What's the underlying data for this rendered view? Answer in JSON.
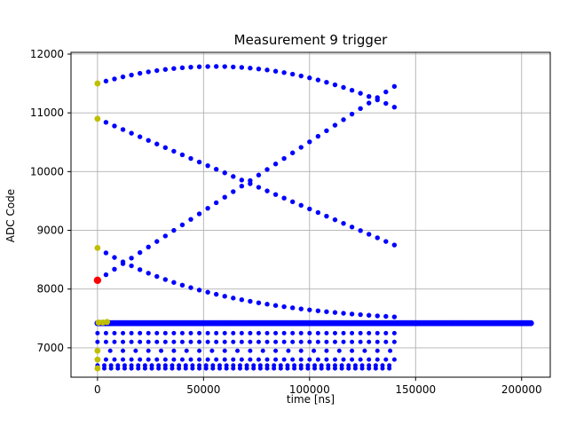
{
  "chart_data": {
    "type": "scatter",
    "title": "Measurement 9 trigger",
    "xlabel": "time [ns]",
    "ylabel": "ADC Code",
    "xlim": [
      -12500,
      213500
    ],
    "ylim": [
      6500,
      12030
    ],
    "xticks": [
      0,
      50000,
      100000,
      150000,
      200000
    ],
    "yticks": [
      7000,
      8000,
      9000,
      10000,
      11000,
      12000
    ],
    "grid": true,
    "legend": "none",
    "colors": {
      "points": "#0000ff",
      "start_markers": "#bfbf00",
      "trigger_marker": "#ff0000",
      "grid": "#b0b0b0",
      "axes": "#000000",
      "background": "#ffffff"
    },
    "series": [
      {
        "name": "top-arc",
        "points": [
          [
            0,
            11500
          ],
          [
            4000,
            11541
          ],
          [
            8000,
            11578
          ],
          [
            12000,
            11613
          ],
          [
            16000,
            11644
          ],
          [
            20000,
            11673
          ],
          [
            24000,
            11698
          ],
          [
            28000,
            11720
          ],
          [
            32000,
            11739
          ],
          [
            36000,
            11755
          ],
          [
            40000,
            11768
          ],
          [
            44000,
            11778
          ],
          [
            48000,
            11785
          ],
          [
            52000,
            11789
          ],
          [
            56000,
            11790
          ],
          [
            60000,
            11788
          ],
          [
            64000,
            11782
          ],
          [
            68000,
            11774
          ],
          [
            72000,
            11762
          ],
          [
            76000,
            11748
          ],
          [
            80000,
            11730
          ],
          [
            84000,
            11709
          ],
          [
            88000,
            11686
          ],
          [
            92000,
            11659
          ],
          [
            96000,
            11629
          ],
          [
            100000,
            11596
          ],
          [
            104000,
            11560
          ],
          [
            108000,
            11521
          ],
          [
            112000,
            11478
          ],
          [
            116000,
            11433
          ],
          [
            120000,
            11385
          ],
          [
            124000,
            11333
          ],
          [
            128000,
            11279
          ],
          [
            132000,
            11221
          ],
          [
            136000,
            11161
          ],
          [
            140000,
            11097
          ]
        ]
      },
      {
        "name": "descending",
        "points": [
          [
            0,
            10900
          ],
          [
            4000,
            10839
          ],
          [
            8000,
            10777
          ],
          [
            12000,
            10716
          ],
          [
            16000,
            10654
          ],
          [
            20000,
            10593
          ],
          [
            24000,
            10531
          ],
          [
            28000,
            10470
          ],
          [
            32000,
            10409
          ],
          [
            36000,
            10347
          ],
          [
            40000,
            10286
          ],
          [
            44000,
            10224
          ],
          [
            48000,
            10163
          ],
          [
            52000,
            10101
          ],
          [
            56000,
            10040
          ],
          [
            60000,
            9979
          ],
          [
            64000,
            9917
          ],
          [
            68000,
            9856
          ],
          [
            72000,
            9794
          ],
          [
            76000,
            9733
          ],
          [
            80000,
            9671
          ],
          [
            84000,
            9610
          ],
          [
            88000,
            9549
          ],
          [
            92000,
            9487
          ],
          [
            96000,
            9426
          ],
          [
            100000,
            9364
          ],
          [
            104000,
            9303
          ],
          [
            108000,
            9241
          ],
          [
            112000,
            9180
          ],
          [
            116000,
            9119
          ],
          [
            120000,
            9057
          ],
          [
            124000,
            8996
          ],
          [
            128000,
            8934
          ],
          [
            132000,
            8873
          ],
          [
            136000,
            8811
          ],
          [
            140000,
            8750
          ]
        ]
      },
      {
        "name": "ascending",
        "points": [
          [
            0,
            8150
          ],
          [
            4000,
            8244
          ],
          [
            8000,
            8339
          ],
          [
            12000,
            8433
          ],
          [
            16000,
            8527
          ],
          [
            20000,
            8621
          ],
          [
            24000,
            8716
          ],
          [
            28000,
            8810
          ],
          [
            32000,
            8904
          ],
          [
            36000,
            8999
          ],
          [
            40000,
            9093
          ],
          [
            44000,
            9187
          ],
          [
            48000,
            9281
          ],
          [
            52000,
            9376
          ],
          [
            56000,
            9470
          ],
          [
            60000,
            9564
          ],
          [
            64000,
            9659
          ],
          [
            68000,
            9753
          ],
          [
            72000,
            9847
          ],
          [
            76000,
            9941
          ],
          [
            80000,
            10036
          ],
          [
            84000,
            10130
          ],
          [
            88000,
            10224
          ],
          [
            92000,
            10319
          ],
          [
            96000,
            10413
          ],
          [
            100000,
            10507
          ],
          [
            104000,
            10601
          ],
          [
            108000,
            10696
          ],
          [
            112000,
            10790
          ],
          [
            116000,
            10884
          ],
          [
            120000,
            10979
          ],
          [
            124000,
            11073
          ],
          [
            128000,
            11167
          ],
          [
            132000,
            11261
          ],
          [
            136000,
            11356
          ],
          [
            140000,
            11450
          ]
        ]
      },
      {
        "name": "decay-to-baseline",
        "points": [
          [
            0,
            8700
          ],
          [
            4000,
            8616
          ],
          [
            8000,
            8538
          ],
          [
            12000,
            8464
          ],
          [
            16000,
            8396
          ],
          [
            20000,
            8331
          ],
          [
            24000,
            8271
          ],
          [
            28000,
            8215
          ],
          [
            32000,
            8163
          ],
          [
            36000,
            8113
          ],
          [
            40000,
            8067
          ],
          [
            44000,
            8024
          ],
          [
            48000,
            7984
          ],
          [
            52000,
            7947
          ],
          [
            56000,
            7911
          ],
          [
            60000,
            7878
          ],
          [
            64000,
            7847
          ],
          [
            68000,
            7819
          ],
          [
            72000,
            7792
          ],
          [
            76000,
            7766
          ],
          [
            80000,
            7743
          ],
          [
            84000,
            7721
          ],
          [
            88000,
            7700
          ],
          [
            92000,
            7681
          ],
          [
            96000,
            7662
          ],
          [
            100000,
            7646
          ],
          [
            104000,
            7630
          ],
          [
            108000,
            7615
          ],
          [
            112000,
            7601
          ],
          [
            116000,
            7588
          ],
          [
            120000,
            7576
          ],
          [
            124000,
            7565
          ],
          [
            128000,
            7554
          ],
          [
            132000,
            7544
          ],
          [
            136000,
            7535
          ],
          [
            140000,
            7526
          ]
        ]
      }
    ],
    "rows": [
      {
        "name": "baseline-band",
        "y": 7420,
        "x_start": 0,
        "x_end": 205000,
        "step": 700,
        "r": 3.4
      },
      {
        "name": "row-7250",
        "y": 7250,
        "x_start": 0,
        "x_end": 140000,
        "step": 4000,
        "r": 2.5
      },
      {
        "name": "row-7100",
        "y": 7100,
        "x_start": 0,
        "x_end": 140000,
        "step": 4000,
        "r": 2.5
      },
      {
        "name": "row-6950",
        "y": 6950,
        "x_start": 0,
        "x_end": 140000,
        "step": 6000,
        "r": 2.5
      },
      {
        "name": "row-6800",
        "y": 6800,
        "x_start": 0,
        "x_end": 140000,
        "step": 4000,
        "r": 2.5
      },
      {
        "name": "row-6700",
        "y": 6700,
        "x_start": 0,
        "x_end": 140000,
        "step": 3200,
        "r": 2.5
      },
      {
        "name": "row-6650",
        "y": 6650,
        "x_start": 0,
        "x_end": 140000,
        "step": 3200,
        "r": 2.5
      }
    ],
    "start_markers": [
      [
        0,
        11500
      ],
      [
        0,
        10900
      ],
      [
        0,
        8700
      ],
      [
        500,
        7430
      ],
      [
        2500,
        7430
      ],
      [
        4500,
        7440
      ],
      [
        0,
        6950
      ],
      [
        0,
        6800
      ],
      [
        0,
        6650
      ]
    ],
    "trigger_marker": [
      0,
      8150
    ]
  }
}
